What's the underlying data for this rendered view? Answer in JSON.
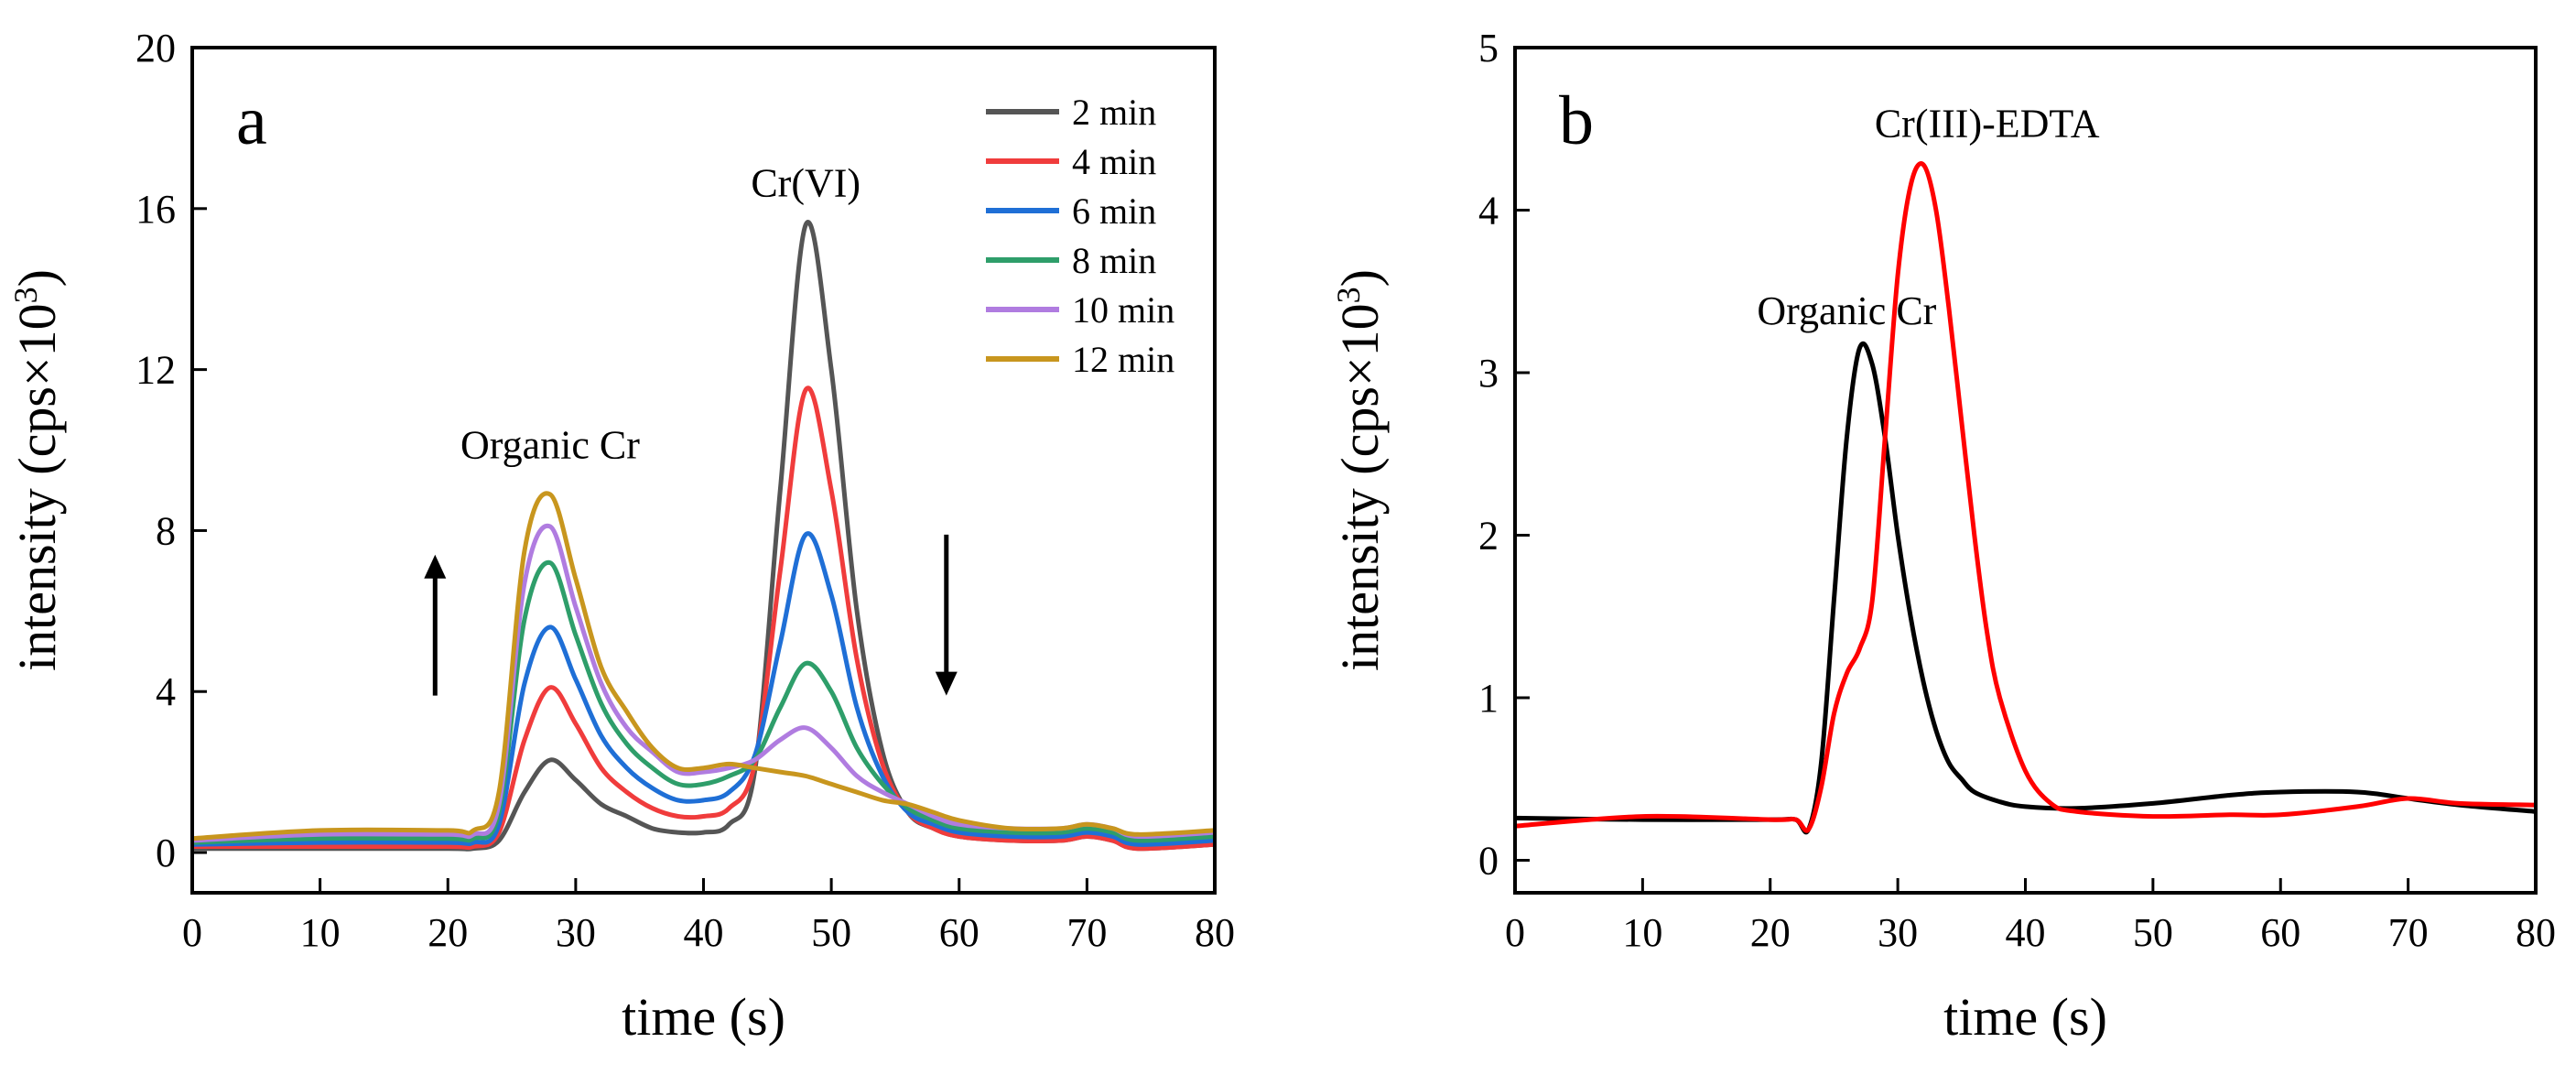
{
  "chart_data": [
    {
      "type": "line",
      "panel_label": "a",
      "xlabel": "time (s)",
      "ylabel_main": "intensity (cps×10",
      "ylabel_sup": "3",
      "ylabel_close": ")",
      "xlim": [
        0,
        80
      ],
      "ylim": [
        -1,
        20
      ],
      "xticks": [
        0,
        10,
        20,
        30,
        40,
        50,
        60,
        70,
        80
      ],
      "yticks": [
        0,
        4,
        8,
        12,
        16,
        20
      ],
      "grid": false,
      "legend_position": "top-right",
      "annotations": [
        {
          "text": "Organic Cr",
          "x": 28,
          "y": 9.8
        },
        {
          "text": "Cr(VI)",
          "x": 48,
          "y": 16.3
        }
      ],
      "arrows": [
        {
          "direction": "up",
          "x": 19,
          "y_from": 3.9,
          "y_to": 7.4
        },
        {
          "direction": "down",
          "x": 59,
          "y_from": 7.9,
          "y_to": 3.9
        }
      ],
      "x": [
        0,
        10,
        20,
        22,
        24,
        26,
        28,
        30,
        32,
        34,
        36,
        38,
        40,
        42,
        44,
        46,
        48,
        50,
        52,
        54,
        56,
        58,
        60,
        64,
        68,
        70,
        72,
        74,
        80
      ],
      "series": [
        {
          "name": "2 min",
          "color": "#555555",
          "values": [
            0.1,
            0.1,
            0.1,
            0.1,
            0.3,
            1.5,
            2.3,
            1.8,
            1.2,
            0.9,
            0.6,
            0.5,
            0.5,
            0.7,
            2.0,
            9.0,
            15.6,
            12.0,
            6.0,
            2.5,
            1.0,
            0.6,
            0.4,
            0.3,
            0.3,
            0.4,
            0.3,
            0.1,
            0.2
          ]
        },
        {
          "name": "4 min",
          "color": "#f03c3c",
          "values": [
            0.15,
            0.15,
            0.15,
            0.15,
            0.5,
            2.8,
            4.1,
            3.2,
            2.1,
            1.5,
            1.1,
            0.9,
            0.9,
            1.1,
            2.2,
            7.0,
            11.5,
            9.0,
            4.8,
            2.2,
            1.0,
            0.6,
            0.4,
            0.3,
            0.3,
            0.4,
            0.3,
            0.1,
            0.2
          ]
        },
        {
          "name": "6 min",
          "color": "#1f6fd6",
          "values": [
            0.2,
            0.25,
            0.25,
            0.25,
            0.7,
            4.2,
            5.6,
            4.3,
            2.9,
            2.1,
            1.6,
            1.3,
            1.3,
            1.5,
            2.4,
            5.2,
            7.9,
            6.4,
            3.6,
            1.9,
            1.0,
            0.7,
            0.5,
            0.4,
            0.4,
            0.5,
            0.4,
            0.2,
            0.3
          ]
        },
        {
          "name": "8 min",
          "color": "#2e9e6a",
          "values": [
            0.25,
            0.35,
            0.35,
            0.35,
            1.0,
            5.8,
            7.2,
            5.4,
            3.7,
            2.7,
            2.1,
            1.7,
            1.7,
            1.9,
            2.3,
            3.6,
            4.7,
            4.0,
            2.6,
            1.7,
            1.1,
            0.8,
            0.6,
            0.5,
            0.5,
            0.6,
            0.5,
            0.3,
            0.4
          ]
        },
        {
          "name": "10 min",
          "color": "#b07ce0",
          "values": [
            0.3,
            0.45,
            0.45,
            0.45,
            1.2,
            6.7,
            8.1,
            6.1,
            4.2,
            3.1,
            2.5,
            2.0,
            2.0,
            2.1,
            2.3,
            2.8,
            3.1,
            2.6,
            1.9,
            1.5,
            1.2,
            0.9,
            0.7,
            0.6,
            0.6,
            0.7,
            0.6,
            0.4,
            0.5
          ]
        },
        {
          "name": "12 min",
          "color": "#c8961e",
          "values": [
            0.35,
            0.55,
            0.55,
            0.55,
            1.5,
            7.5,
            8.9,
            6.8,
            4.6,
            3.5,
            2.6,
            2.1,
            2.1,
            2.2,
            2.1,
            2.0,
            1.9,
            1.7,
            1.5,
            1.3,
            1.2,
            1.0,
            0.8,
            0.6,
            0.6,
            0.7,
            0.6,
            0.45,
            0.55
          ]
        }
      ]
    },
    {
      "type": "line",
      "panel_label": "b",
      "xlabel": "time (s)",
      "ylabel_main": "intensity (cps×10",
      "ylabel_sup": "3",
      "ylabel_close": ")",
      "xlim": [
        0,
        80
      ],
      "ylim": [
        -0.2,
        5
      ],
      "xticks": [
        0,
        10,
        20,
        30,
        40,
        50,
        60,
        70,
        80
      ],
      "yticks": [
        0,
        1,
        2,
        3,
        4,
        5
      ],
      "grid": false,
      "annotations": [
        {
          "text": "Organic Cr",
          "x": 26,
          "y": 3.3
        },
        {
          "text": "Cr(III)-EDTA",
          "x": 37,
          "y": 4.45
        }
      ],
      "series": [
        {
          "color": "#000000",
          "x": [
            0,
            10,
            20,
            22,
            23,
            24,
            25,
            26,
            27,
            28,
            29,
            30,
            31,
            32,
            33,
            34,
            35,
            36,
            38,
            40,
            44,
            50,
            56,
            60,
            66,
            70,
            74,
            80
          ],
          "values": [
            0.26,
            0.25,
            0.25,
            0.25,
            0.19,
            0.6,
            1.6,
            2.6,
            3.15,
            3.05,
            2.6,
            2.0,
            1.5,
            1.1,
            0.8,
            0.6,
            0.5,
            0.42,
            0.36,
            0.33,
            0.32,
            0.35,
            0.4,
            0.42,
            0.42,
            0.38,
            0.34,
            0.3
          ]
        },
        {
          "color": "#ff0000",
          "x": [
            0,
            10,
            20,
            22,
            23,
            24,
            25,
            26,
            27,
            28,
            29,
            30,
            31,
            32,
            33,
            34,
            35,
            36,
            37,
            38,
            40,
            42,
            44,
            50,
            56,
            60,
            66,
            70,
            74,
            80
          ],
          "values": [
            0.21,
            0.27,
            0.25,
            0.25,
            0.19,
            0.45,
            0.9,
            1.15,
            1.3,
            1.6,
            2.6,
            3.6,
            4.15,
            4.28,
            4.0,
            3.4,
            2.7,
            2.0,
            1.4,
            1.0,
            0.55,
            0.35,
            0.3,
            0.27,
            0.28,
            0.28,
            0.33,
            0.38,
            0.35,
            0.34
          ]
        }
      ]
    }
  ]
}
